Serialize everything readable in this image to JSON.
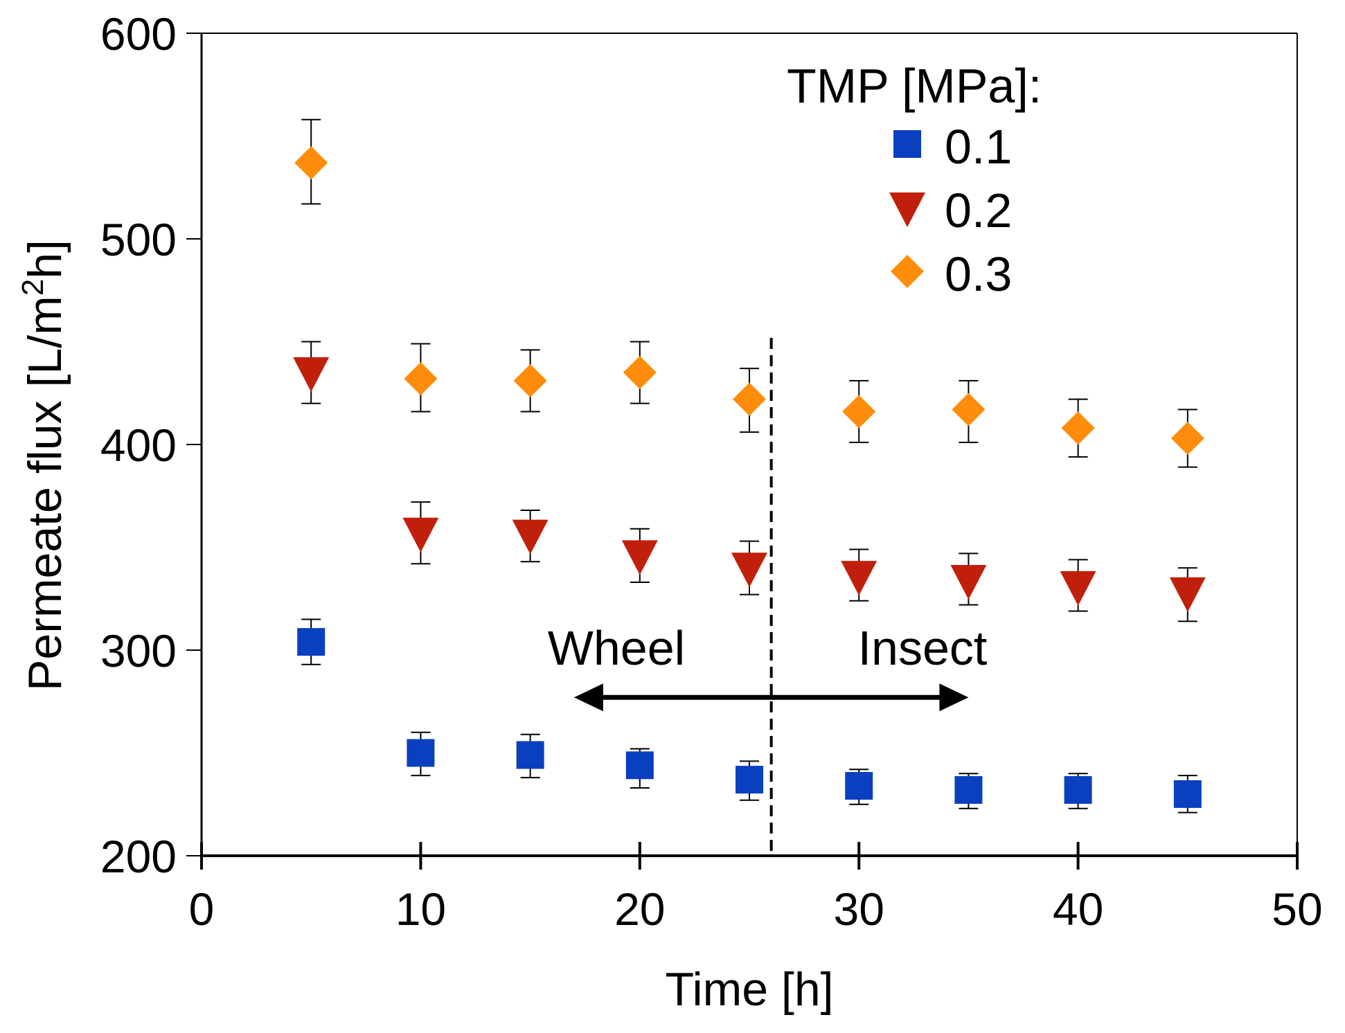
{
  "chart_data": {
    "type": "scatter",
    "title": "",
    "xlabel": "Time [h]",
    "ylabel_main": "Permeate flux [L/m",
    "ylabel_sup": "2",
    "ylabel_tail": "h]",
    "xlim": [
      0,
      50
    ],
    "ylim": [
      200,
      600
    ],
    "xticks": [
      0,
      10,
      20,
      30,
      40,
      50
    ],
    "yticks": [
      200,
      300,
      400,
      500,
      600
    ],
    "xtick_labels": [
      "0",
      "10",
      "20",
      "30",
      "40",
      "50"
    ],
    "ytick_labels": [
      "200",
      "300",
      "400",
      "500",
      "600"
    ],
    "grid": false,
    "legend": {
      "title": "TMP [MPa]:",
      "position": "top-right"
    },
    "series": [
      {
        "name": "0.1",
        "marker": "square",
        "color": "#0a3fbf",
        "x": [
          5,
          10,
          15,
          20,
          25,
          30,
          35,
          40,
          45
        ],
        "y": [
          304,
          250,
          249,
          244,
          237,
          234,
          232,
          232,
          230
        ],
        "err_upper": [
          315,
          260,
          259,
          252,
          246,
          242,
          240,
          240,
          239
        ],
        "err_lower": [
          293,
          239,
          238,
          233,
          227,
          225,
          223,
          223,
          221
        ]
      },
      {
        "name": "0.2",
        "marker": "triangle-down",
        "color": "#c0200b",
        "x": [
          5,
          10,
          15,
          20,
          25,
          30,
          35,
          40,
          45
        ],
        "y": [
          435,
          357,
          356,
          346,
          340,
          336,
          334,
          331,
          328
        ],
        "err_upper": [
          450,
          372,
          368,
          359,
          353,
          349,
          347,
          344,
          340
        ],
        "err_lower": [
          420,
          342,
          343,
          333,
          327,
          324,
          322,
          319,
          314
        ]
      },
      {
        "name": "0.3",
        "marker": "diamond",
        "color": "#ff8c0a",
        "x": [
          5,
          10,
          15,
          20,
          25,
          30,
          35,
          40,
          45
        ],
        "y": [
          537,
          432,
          431,
          435,
          422,
          416,
          417,
          408,
          403
        ],
        "err_upper": [
          558,
          449,
          446,
          450,
          437,
          431,
          431,
          422,
          417
        ],
        "err_lower": [
          517,
          416,
          416,
          420,
          406,
          401,
          401,
          394,
          389
        ]
      }
    ],
    "annotations": {
      "divider_x": 26,
      "left_label": "Wheel",
      "right_label": "Insect",
      "arrow_y": 277,
      "arrow_x_start": 17,
      "arrow_x_end": 35
    }
  }
}
